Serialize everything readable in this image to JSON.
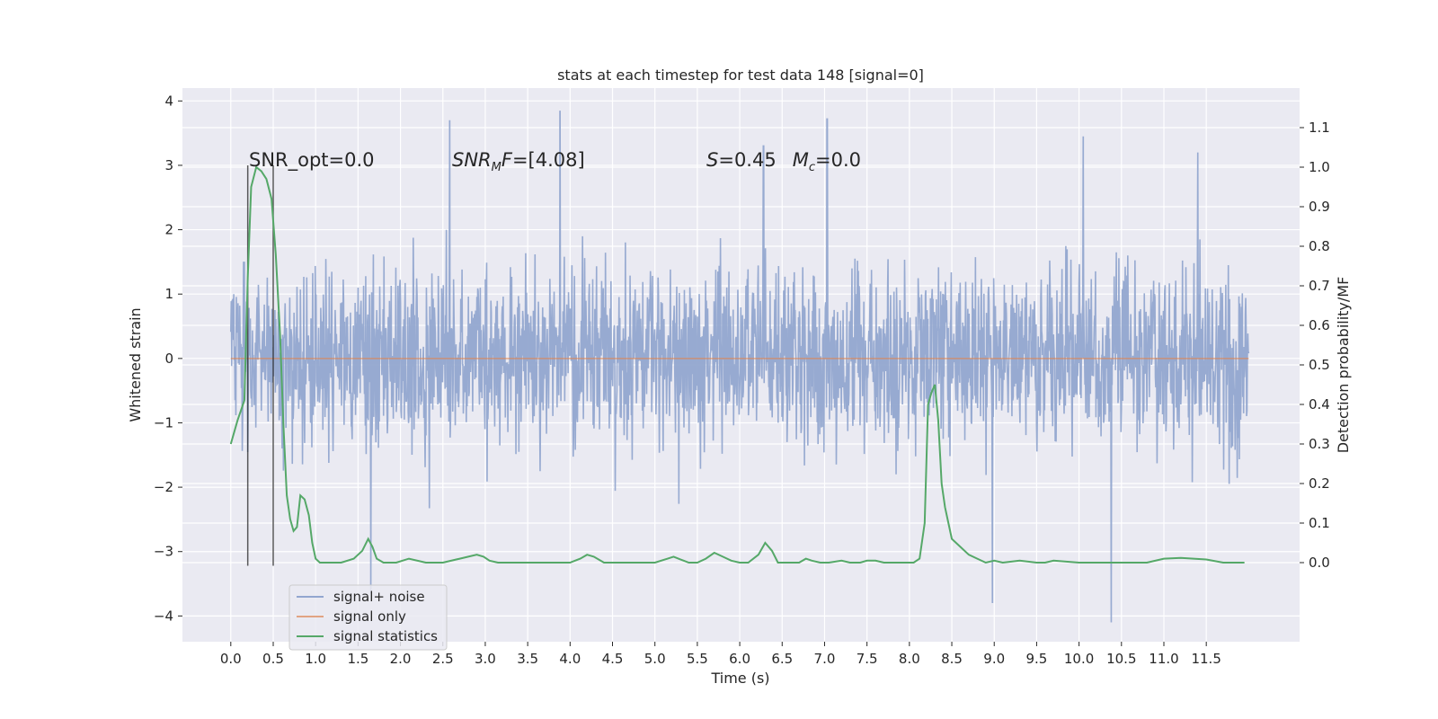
{
  "chart_data": {
    "type": "line",
    "title": "stats at each timestep for test data 148 [signal=0]",
    "xlabel": "Time (s)",
    "ylabel": "Whitened strain",
    "y2label": "Detection probability/MF",
    "xlim": [
      -0.57,
      12.6
    ],
    "ylim": [
      -4.4,
      4.2
    ],
    "y2lim": [
      -0.2,
      1.2
    ],
    "grid": true,
    "legend_position": "lower-left",
    "x_ticks": [
      0.0,
      0.5,
      1.0,
      1.5,
      2.0,
      2.5,
      3.0,
      3.5,
      4.0,
      4.5,
      5.0,
      5.5,
      6.0,
      6.5,
      7.0,
      7.5,
      8.0,
      8.5,
      9.0,
      9.5,
      10.0,
      10.5,
      11.0,
      11.5
    ],
    "x_tick_labels": [
      "0.0",
      "0.5",
      "1.0",
      "1.5",
      "2.0",
      "2.5",
      "3.0",
      "3.5",
      "4.0",
      "4.5",
      "5.0",
      "5.5",
      "6.0",
      "6.5",
      "7.0",
      "7.5",
      "8.0",
      "8.5",
      "9.0",
      "9.5",
      "10.0",
      "10.5",
      "11.0",
      "11.5"
    ],
    "y_ticks": [
      -4,
      -3,
      -2,
      -1,
      0,
      1,
      2,
      3,
      4
    ],
    "y_tick_labels": [
      "−4",
      "−3",
      "−2",
      "−1",
      "0",
      "1",
      "2",
      "3",
      "4"
    ],
    "y2_ticks": [
      0.0,
      0.1,
      0.2,
      0.3,
      0.4,
      0.5,
      0.6,
      0.7,
      0.8,
      0.9,
      1.0,
      1.1
    ],
    "y2_tick_labels": [
      "0.0",
      "0.1",
      "0.2",
      "0.3",
      "0.4",
      "0.5",
      "0.6",
      "0.7",
      "0.8",
      "0.9",
      "1.0",
      "1.1"
    ],
    "series": [
      {
        "name": "signal+ noise",
        "color": "#92a6cf",
        "x_range": [
          0.0,
          12.0
        ],
        "core_range": [
          -1.35,
          1.75
        ],
        "min": -4.1,
        "max": 3.85,
        "notable_peaks": [
          [
            2.58,
            3.7
          ],
          [
            3.88,
            3.85
          ],
          [
            6.28,
            3.3
          ],
          [
            7.03,
            3.72
          ],
          [
            10.05,
            3.45
          ],
          [
            11.4,
            3.2
          ],
          [
            1.65,
            -3.65
          ],
          [
            8.98,
            -3.8
          ],
          [
            10.38,
            -4.1
          ]
        ]
      },
      {
        "name": "signal only",
        "color": "#dd8452",
        "x": [
          0.0,
          12.0
        ],
        "y": [
          0.0,
          0.0
        ]
      },
      {
        "name": "signal statistics",
        "color": "#55a868",
        "axis": "right",
        "x": [
          0.0,
          0.08,
          0.16,
          0.2,
          0.24,
          0.3,
          0.36,
          0.42,
          0.48,
          0.53,
          0.58,
          0.62,
          0.66,
          0.7,
          0.74,
          0.78,
          0.82,
          0.87,
          0.92,
          0.96,
          1.0,
          1.05,
          1.12,
          1.2,
          1.3,
          1.45,
          1.55,
          1.62,
          1.67,
          1.72,
          1.8,
          1.95,
          2.1,
          2.3,
          2.5,
          2.7,
          2.8,
          2.9,
          2.98,
          3.05,
          3.15,
          3.3,
          3.5,
          3.8,
          4.0,
          4.12,
          4.2,
          4.28,
          4.4,
          4.6,
          4.8,
          5.0,
          5.15,
          5.22,
          5.3,
          5.4,
          5.5,
          5.6,
          5.7,
          5.8,
          5.9,
          6.0,
          6.1,
          6.22,
          6.3,
          6.38,
          6.45,
          6.55,
          6.7,
          6.78,
          6.85,
          6.95,
          7.05,
          7.2,
          7.3,
          7.42,
          7.5,
          7.6,
          7.7,
          7.8,
          7.88,
          7.95,
          8.05,
          8.12,
          8.18,
          8.22,
          8.26,
          8.3,
          8.34,
          8.38,
          8.42,
          8.46,
          8.5,
          8.6,
          8.7,
          8.8,
          8.9,
          9.0,
          9.1,
          9.3,
          9.5,
          9.6,
          9.7,
          10.0,
          10.5,
          10.8,
          11.0,
          11.2,
          11.5,
          11.7,
          11.95
        ],
        "y": [
          0.3,
          0.36,
          0.41,
          0.72,
          0.95,
          1.0,
          0.99,
          0.97,
          0.92,
          0.78,
          0.58,
          0.35,
          0.17,
          0.11,
          0.08,
          0.09,
          0.17,
          0.16,
          0.12,
          0.05,
          0.01,
          0.0,
          0.0,
          0.0,
          0.0,
          0.01,
          0.03,
          0.06,
          0.04,
          0.01,
          0.0,
          0.0,
          0.01,
          0.0,
          0.0,
          0.01,
          0.015,
          0.02,
          0.015,
          0.005,
          0.0,
          0.0,
          0.0,
          0.0,
          0.0,
          0.01,
          0.02,
          0.015,
          0.0,
          0.0,
          0.0,
          0.0,
          0.01,
          0.015,
          0.008,
          0.0,
          0.0,
          0.01,
          0.025,
          0.015,
          0.005,
          0.0,
          0.0,
          0.02,
          0.05,
          0.03,
          0.0,
          0.0,
          0.0,
          0.01,
          0.005,
          0.0,
          0.0,
          0.005,
          0.0,
          0.0,
          0.005,
          0.005,
          0.0,
          0.0,
          0.0,
          0.0,
          0.0,
          0.01,
          0.1,
          0.4,
          0.43,
          0.45,
          0.36,
          0.2,
          0.14,
          0.1,
          0.06,
          0.04,
          0.02,
          0.01,
          0.0,
          0.005,
          0.0,
          0.005,
          0.0,
          0.0,
          0.005,
          0.0,
          0.0,
          0.0,
          0.01,
          0.012,
          0.008,
          0.0,
          0.0
        ]
      }
    ],
    "vertical_markers": {
      "color": "#262626",
      "x": [
        0.2,
        0.5
      ],
      "y_range": [
        -3.22,
        3.0
      ]
    },
    "annotations": [
      {
        "text": "SNR_opt=0.0",
        "x": 0.2,
        "y": 3.0
      },
      {
        "text": "SNR_MF=[4.08]",
        "x": 2.6,
        "y": 3.0
      },
      {
        "text": "S=0.45   M_c=0.0",
        "x": 5.6,
        "y": 3.0
      }
    ]
  },
  "legend": {
    "items": [
      {
        "label": "signal+ noise",
        "color": "#92a6cf"
      },
      {
        "label": "signal only",
        "color": "#dd8452"
      },
      {
        "label": "signal statistics",
        "color": "#55a868"
      }
    ]
  },
  "annotation_text": {
    "snr_opt": "SNR_opt=0.0",
    "snr_mf_var": "SNR",
    "snr_mf_sub": "M",
    "snr_mf_tail": "F",
    "snr_mf_val": "=[4.08]",
    "s_var": "S",
    "s_val": "=0.45",
    "mc_var": "M",
    "mc_sub": "c",
    "mc_val": "=0.0"
  }
}
